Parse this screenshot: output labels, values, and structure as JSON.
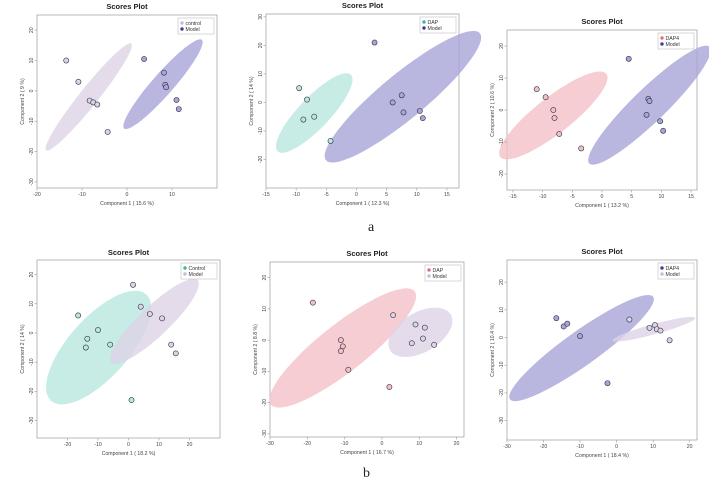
{
  "captions": {
    "a": "a",
    "b": "b"
  },
  "chart_data": [
    {
      "type": "scatter",
      "title": "Scores Plot",
      "xlabel": "Component 1 ( 15.6 %)",
      "ylabel": "Component 2 ( 9 %)",
      "xlim": [
        -20,
        20
      ],
      "ylim": [
        -32,
        25
      ],
      "xticks": [
        -20,
        -10,
        0,
        10
      ],
      "yticks": [
        -30,
        -20,
        -10,
        0,
        10,
        20
      ],
      "legend": "top-right",
      "series": [
        {
          "name": "control",
          "color": "#c9b8d8",
          "fill_color": "#ddd3e6",
          "points": [
            [
              -13.5,
              10
            ],
            [
              -10.8,
              3
            ],
            [
              -8.3,
              -3.2
            ],
            [
              -7.5,
              -3.8
            ],
            [
              -6.6,
              -4.5
            ],
            [
              -4.3,
              -13.5
            ]
          ],
          "ellipse": {
            "cx": -8.5,
            "cy": -2,
            "rx": 20,
            "ry": 2.3,
            "angle_deg": -62
          }
        },
        {
          "name": "Model",
          "color": "#3f3f8f",
          "fill_color": "#a8a4d8",
          "points": [
            [
              3.8,
              10.5
            ],
            [
              8.2,
              6
            ],
            [
              8.5,
              2
            ],
            [
              8.7,
              1.2
            ],
            [
              11,
              -3
            ],
            [
              11.5,
              -6
            ]
          ],
          "ellipse": {
            "cx": 8,
            "cy": 2.2,
            "rx": 17,
            "ry": 2.7,
            "angle_deg": -60
          }
        }
      ]
    },
    {
      "type": "scatter",
      "title": "Scores Plot",
      "xlabel": "Component 1 ( 12.3 %)",
      "ylabel": "Component 2 ( 14 %)",
      "xlim": [
        -15,
        17
      ],
      "ylim": [
        -30,
        31
      ],
      "xticks": [
        -15,
        -10,
        -5,
        0,
        5,
        10,
        15
      ],
      "yticks": [
        -20,
        -10,
        0,
        10,
        20,
        30
      ],
      "legend": "top-right",
      "series": [
        {
          "name": "DAP",
          "color": "#46b0a0",
          "fill_color": "#b9e6de",
          "points": [
            [
              -9.5,
              5
            ],
            [
              -8.2,
              1
            ],
            [
              -8.8,
              -6
            ],
            [
              -7,
              -5
            ],
            [
              -4.3,
              -13.5
            ]
          ],
          "ellipse": {
            "cx": -7,
            "cy": -3.7,
            "rx": 15,
            "ry": 3.2,
            "angle_deg": -68
          }
        },
        {
          "name": "Model",
          "color": "#3f3f8f",
          "fill_color": "#a8a4d8",
          "points": [
            [
              3,
              21
            ],
            [
              6,
              0
            ],
            [
              7.5,
              2.5
            ],
            [
              7.8,
              -3.5
            ],
            [
              10.5,
              -3
            ],
            [
              11,
              -5.5
            ]
          ],
          "ellipse": {
            "cx": 7.7,
            "cy": 2,
            "rx": 26,
            "ry": 5,
            "angle_deg": -62
          }
        }
      ]
    },
    {
      "type": "scatter",
      "title": "Scores Plot",
      "xlabel": "Component 1 ( 13.2 %)",
      "ylabel": "Component 2 ( 10.6 %)",
      "xlim": [
        -16,
        16
      ],
      "ylim": [
        -25,
        25
      ],
      "xticks": [
        -15,
        -10,
        -5,
        0,
        5,
        10,
        15
      ],
      "yticks": [
        -20,
        -10,
        0,
        10,
        20
      ],
      "legend": "top-right",
      "series": [
        {
          "name": "DAP4",
          "color": "#e07080",
          "fill_color": "#f4c0c8",
          "points": [
            [
              -11,
              6.5
            ],
            [
              -9.5,
              4
            ],
            [
              -8.2,
              0
            ],
            [
              -8,
              -2.5
            ],
            [
              -7.2,
              -7.5
            ],
            [
              -3.5,
              -12
            ]
          ],
          "ellipse": {
            "cx": -8.2,
            "cy": -1.7,
            "rx": 16,
            "ry": 4,
            "angle_deg": -58
          }
        },
        {
          "name": "Model",
          "color": "#3f3f8f",
          "fill_color": "#a8a4d8",
          "points": [
            [
              4.5,
              16
            ],
            [
              7.8,
              3.5
            ],
            [
              8,
              2.8
            ],
            [
              7.5,
              -1.5
            ],
            [
              9.8,
              -3.5
            ],
            [
              10.3,
              -6.5
            ]
          ],
          "ellipse": {
            "cx": 8,
            "cy": 1.5,
            "rx": 21,
            "ry": 3.5,
            "angle_deg": -62
          }
        }
      ]
    },
    {
      "type": "scatter",
      "title": "Scores Plot",
      "xlabel": "Component 1 ( 18.2 %)",
      "ylabel": "Component 2 ( 14 %)",
      "xlim": [
        -30,
        30
      ],
      "ylim": [
        -36,
        25
      ],
      "xticks": [
        -20,
        -10,
        0,
        10,
        20
      ],
      "yticks": [
        -30,
        -20,
        -10,
        0,
        10,
        20
      ],
      "legend": "top-right",
      "series": [
        {
          "name": "Control",
          "color": "#46b0a0",
          "fill_color": "#b9e6de",
          "points": [
            [
              -16.5,
              6
            ],
            [
              -13.5,
              -2
            ],
            [
              -14,
              -5
            ],
            [
              -10,
              1
            ],
            [
              -6,
              -4
            ],
            [
              1,
              -23
            ]
          ],
          "ellipse": {
            "cx": -9.8,
            "cy": -5,
            "rx": 24,
            "ry": 10,
            "angle_deg": -50
          }
        },
        {
          "name": "Model",
          "color": "#c9b8d8",
          "fill_color": "#ddd3e6",
          "points": [
            [
              1.5,
              16.5
            ],
            [
              4,
              9
            ],
            [
              7,
              6.5
            ],
            [
              11,
              5
            ],
            [
              14,
              -4
            ],
            [
              15.5,
              -7
            ]
          ],
          "ellipse": {
            "cx": 8.5,
            "cy": 4,
            "rx": 20,
            "ry": 5,
            "angle_deg": -45
          }
        }
      ]
    },
    {
      "type": "scatter",
      "title": "Scores Plot",
      "xlabel": "Component 1 ( 16.7 %)",
      "ylabel": "Component 2 ( 8.8 %)",
      "xlim": [
        -30,
        22
      ],
      "ylim": [
        -31,
        25
      ],
      "xticks": [
        -30,
        -20,
        -10,
        0,
        10,
        20
      ],
      "yticks": [
        -30,
        -20,
        -10,
        0,
        10,
        20
      ],
      "legend": "top-right",
      "series": [
        {
          "name": "DAP",
          "color": "#e07080",
          "fill_color": "#f4c0c8",
          "points": [
            [
              -18.5,
              12
            ],
            [
              -11,
              0
            ],
            [
              -10.5,
              -2
            ],
            [
              -11,
              -3.5
            ],
            [
              -9,
              -9.5
            ],
            [
              2,
              -15
            ]
          ],
          "ellipse": {
            "cx": -10.5,
            "cy": -2.5,
            "rx": 26.5,
            "ry": 7,
            "angle_deg": -44
          }
        },
        {
          "name": "Model",
          "color": "#c9b8d8",
          "fill_color": "#ddd3e6",
          "points": [
            [
              3,
              8
            ],
            [
              9,
              5
            ],
            [
              11.5,
              4
            ],
            [
              11,
              0.5
            ],
            [
              14,
              -1.5
            ],
            [
              8,
              -1
            ]
          ],
          "ellipse": {
            "cx": 10.3,
            "cy": 2.5,
            "rx": 10,
            "ry": 6,
            "angle_deg": -40
          }
        }
      ]
    },
    {
      "type": "scatter",
      "title": "Scores Plot",
      "xlabel": "Component 1 ( 18.4 %)",
      "ylabel": "Component 2 ( 10.4 %)",
      "xlim": [
        -30,
        22
      ],
      "ylim": [
        -37,
        28
      ],
      "xticks": [
        -30,
        -20,
        -10,
        0,
        10,
        20
      ],
      "yticks": [
        -30,
        -20,
        -10,
        0,
        10,
        20
      ],
      "legend": "top-right",
      "series": [
        {
          "name": "DAP4",
          "color": "#3f3f8f",
          "fill_color": "#a8a4d8",
          "points": [
            [
              -16.5,
              7
            ],
            [
              -14.5,
              4
            ],
            [
              -13.5,
              5
            ],
            [
              -10,
              0.5
            ],
            [
              -2.5,
              -16.5
            ]
          ],
          "ellipse": {
            "cx": -9.6,
            "cy": -3.8,
            "rx": 27,
            "ry": 5.5,
            "angle_deg": -44
          }
        },
        {
          "name": "Model",
          "color": "#c9b8d8",
          "fill_color": "#ddd3e6",
          "points": [
            [
              3.5,
              6.5
            ],
            [
              9,
              3.5
            ],
            [
              10.5,
              4.5
            ],
            [
              11,
              3
            ],
            [
              12,
              2.5
            ],
            [
              14.5,
              -1
            ]
          ],
          "ellipse": {
            "cx": 10.2,
            "cy": 3,
            "rx": 12,
            "ry": 1.8,
            "angle_deg": -20
          }
        }
      ]
    }
  ]
}
